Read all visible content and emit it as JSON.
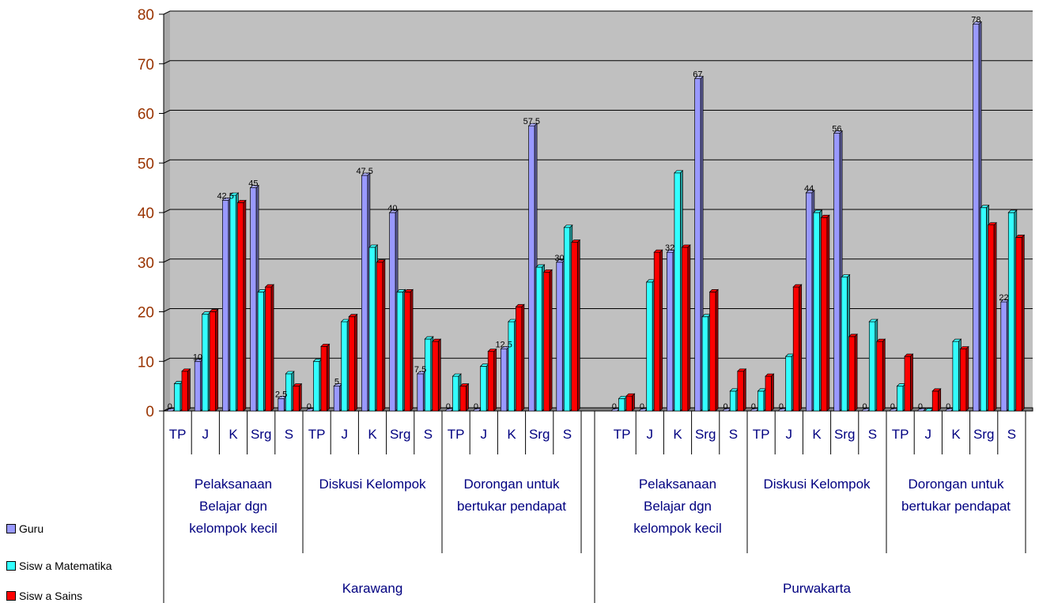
{
  "colors": {
    "guru": "#9999ff",
    "sisma": "#33ffff",
    "sains": "#ff0000",
    "plot_bg": "#c0c0c0",
    "floor": "#808080",
    "axis_text": "#993300",
    "cat_text": "#000080"
  },
  "legend": [
    {
      "name": "Guru",
      "color": "#9999ff"
    },
    {
      "name": "Sisw a Matematika",
      "color": "#33ffff"
    },
    {
      "name": "Sisw a Sains",
      "color": "#ff0000"
    }
  ],
  "chart_data": {
    "type": "bar",
    "ylim": [
      0,
      80
    ],
    "yticks": [
      0,
      10,
      20,
      30,
      40,
      50,
      60,
      70,
      80
    ],
    "grid": true,
    "legend_position": "bottom-left",
    "series": [
      {
        "name": "Guru",
        "values": [
          0,
          10,
          42.5,
          45,
          2.5,
          0,
          5,
          47.5,
          40,
          7.5,
          0,
          0,
          12.5,
          57.5,
          30,
          0,
          0,
          32,
          67,
          0,
          0,
          0,
          44,
          56,
          0,
          0,
          0,
          0,
          78,
          22
        ]
      },
      {
        "name": "Sisw a Matematika",
        "values": [
          5.5,
          19.5,
          43.5,
          24,
          7.5,
          10,
          18,
          33,
          24,
          14.5,
          7,
          9,
          18,
          29,
          37,
          2.5,
          26,
          48,
          19,
          4,
          4,
          11,
          40,
          27,
          18,
          5,
          0,
          14,
          41,
          40
        ]
      },
      {
        "name": "Sisw a Sains",
        "values": [
          8,
          20,
          42,
          25,
          5,
          13,
          19,
          30,
          24,
          14,
          5,
          12,
          21,
          28,
          34,
          3,
          32,
          33,
          24,
          8,
          7,
          25,
          39,
          15,
          14,
          11,
          4,
          12.5,
          37.5,
          35
        ]
      }
    ],
    "data_labels": [
      "0",
      "10",
      "42.5",
      "45",
      "2.5",
      "0",
      "5",
      "47.5",
      "40",
      "7.5",
      "0",
      "0",
      "12.5",
      "57.5",
      "30",
      "0",
      "0",
      "32",
      "67",
      "0",
      "0",
      "0",
      "44",
      "56",
      "0",
      "0",
      "0",
      "0",
      "78",
      "22"
    ],
    "level1": [
      "TP",
      "J",
      "K",
      "Srg",
      "S",
      "TP",
      "J",
      "K",
      "Srg",
      "S",
      "TP",
      "J",
      "K",
      "Srg",
      "S",
      "TP",
      "J",
      "K",
      "Srg",
      "S",
      "TP",
      "J",
      "K",
      "Srg",
      "S",
      "TP",
      "J",
      "K",
      "Srg",
      "S"
    ],
    "level2": [
      [
        "Pelaksanaan",
        "Belajar dgn",
        "kelompok kecil"
      ],
      [
        "Diskusi Kelompok"
      ],
      [
        "Dorongan untuk",
        "bertukar pendapat"
      ],
      [
        "Pelaksanaan",
        "Belajar dgn",
        "kelompok kecil"
      ],
      [
        "Diskusi Kelompok"
      ],
      [
        "Dorongan untuk",
        "bertukar pendapat"
      ]
    ],
    "level3": [
      "Karawang",
      "Purwakarta"
    ]
  }
}
